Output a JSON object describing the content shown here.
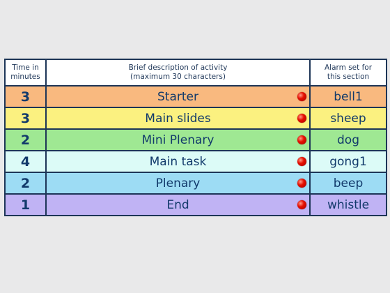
{
  "header": {
    "time_line1": "Time in",
    "time_line2": "minutes",
    "desc_line1": "Brief description of activity",
    "desc_line2": "(maximum 30 characters)",
    "alarm_line1": "Alarm set for",
    "alarm_line2": "this section"
  },
  "rows": [
    {
      "time": "3",
      "description": "Starter",
      "alarm": "bell1",
      "color": "#f9b97f"
    },
    {
      "time": "3",
      "description": "Main slides",
      "alarm": "sheep",
      "color": "#fbf180"
    },
    {
      "time": "2",
      "description": "Mini Plenary",
      "alarm": "dog",
      "color": "#9fe893"
    },
    {
      "time": "4",
      "description": "Main task",
      "alarm": "gong1",
      "color": "#dcfbf7"
    },
    {
      "time": "2",
      "description": "Plenary",
      "alarm": "beep",
      "color": "#9ddcf4"
    },
    {
      "time": "1",
      "description": "End",
      "alarm": "whistle",
      "color": "#c0b3f4"
    }
  ]
}
